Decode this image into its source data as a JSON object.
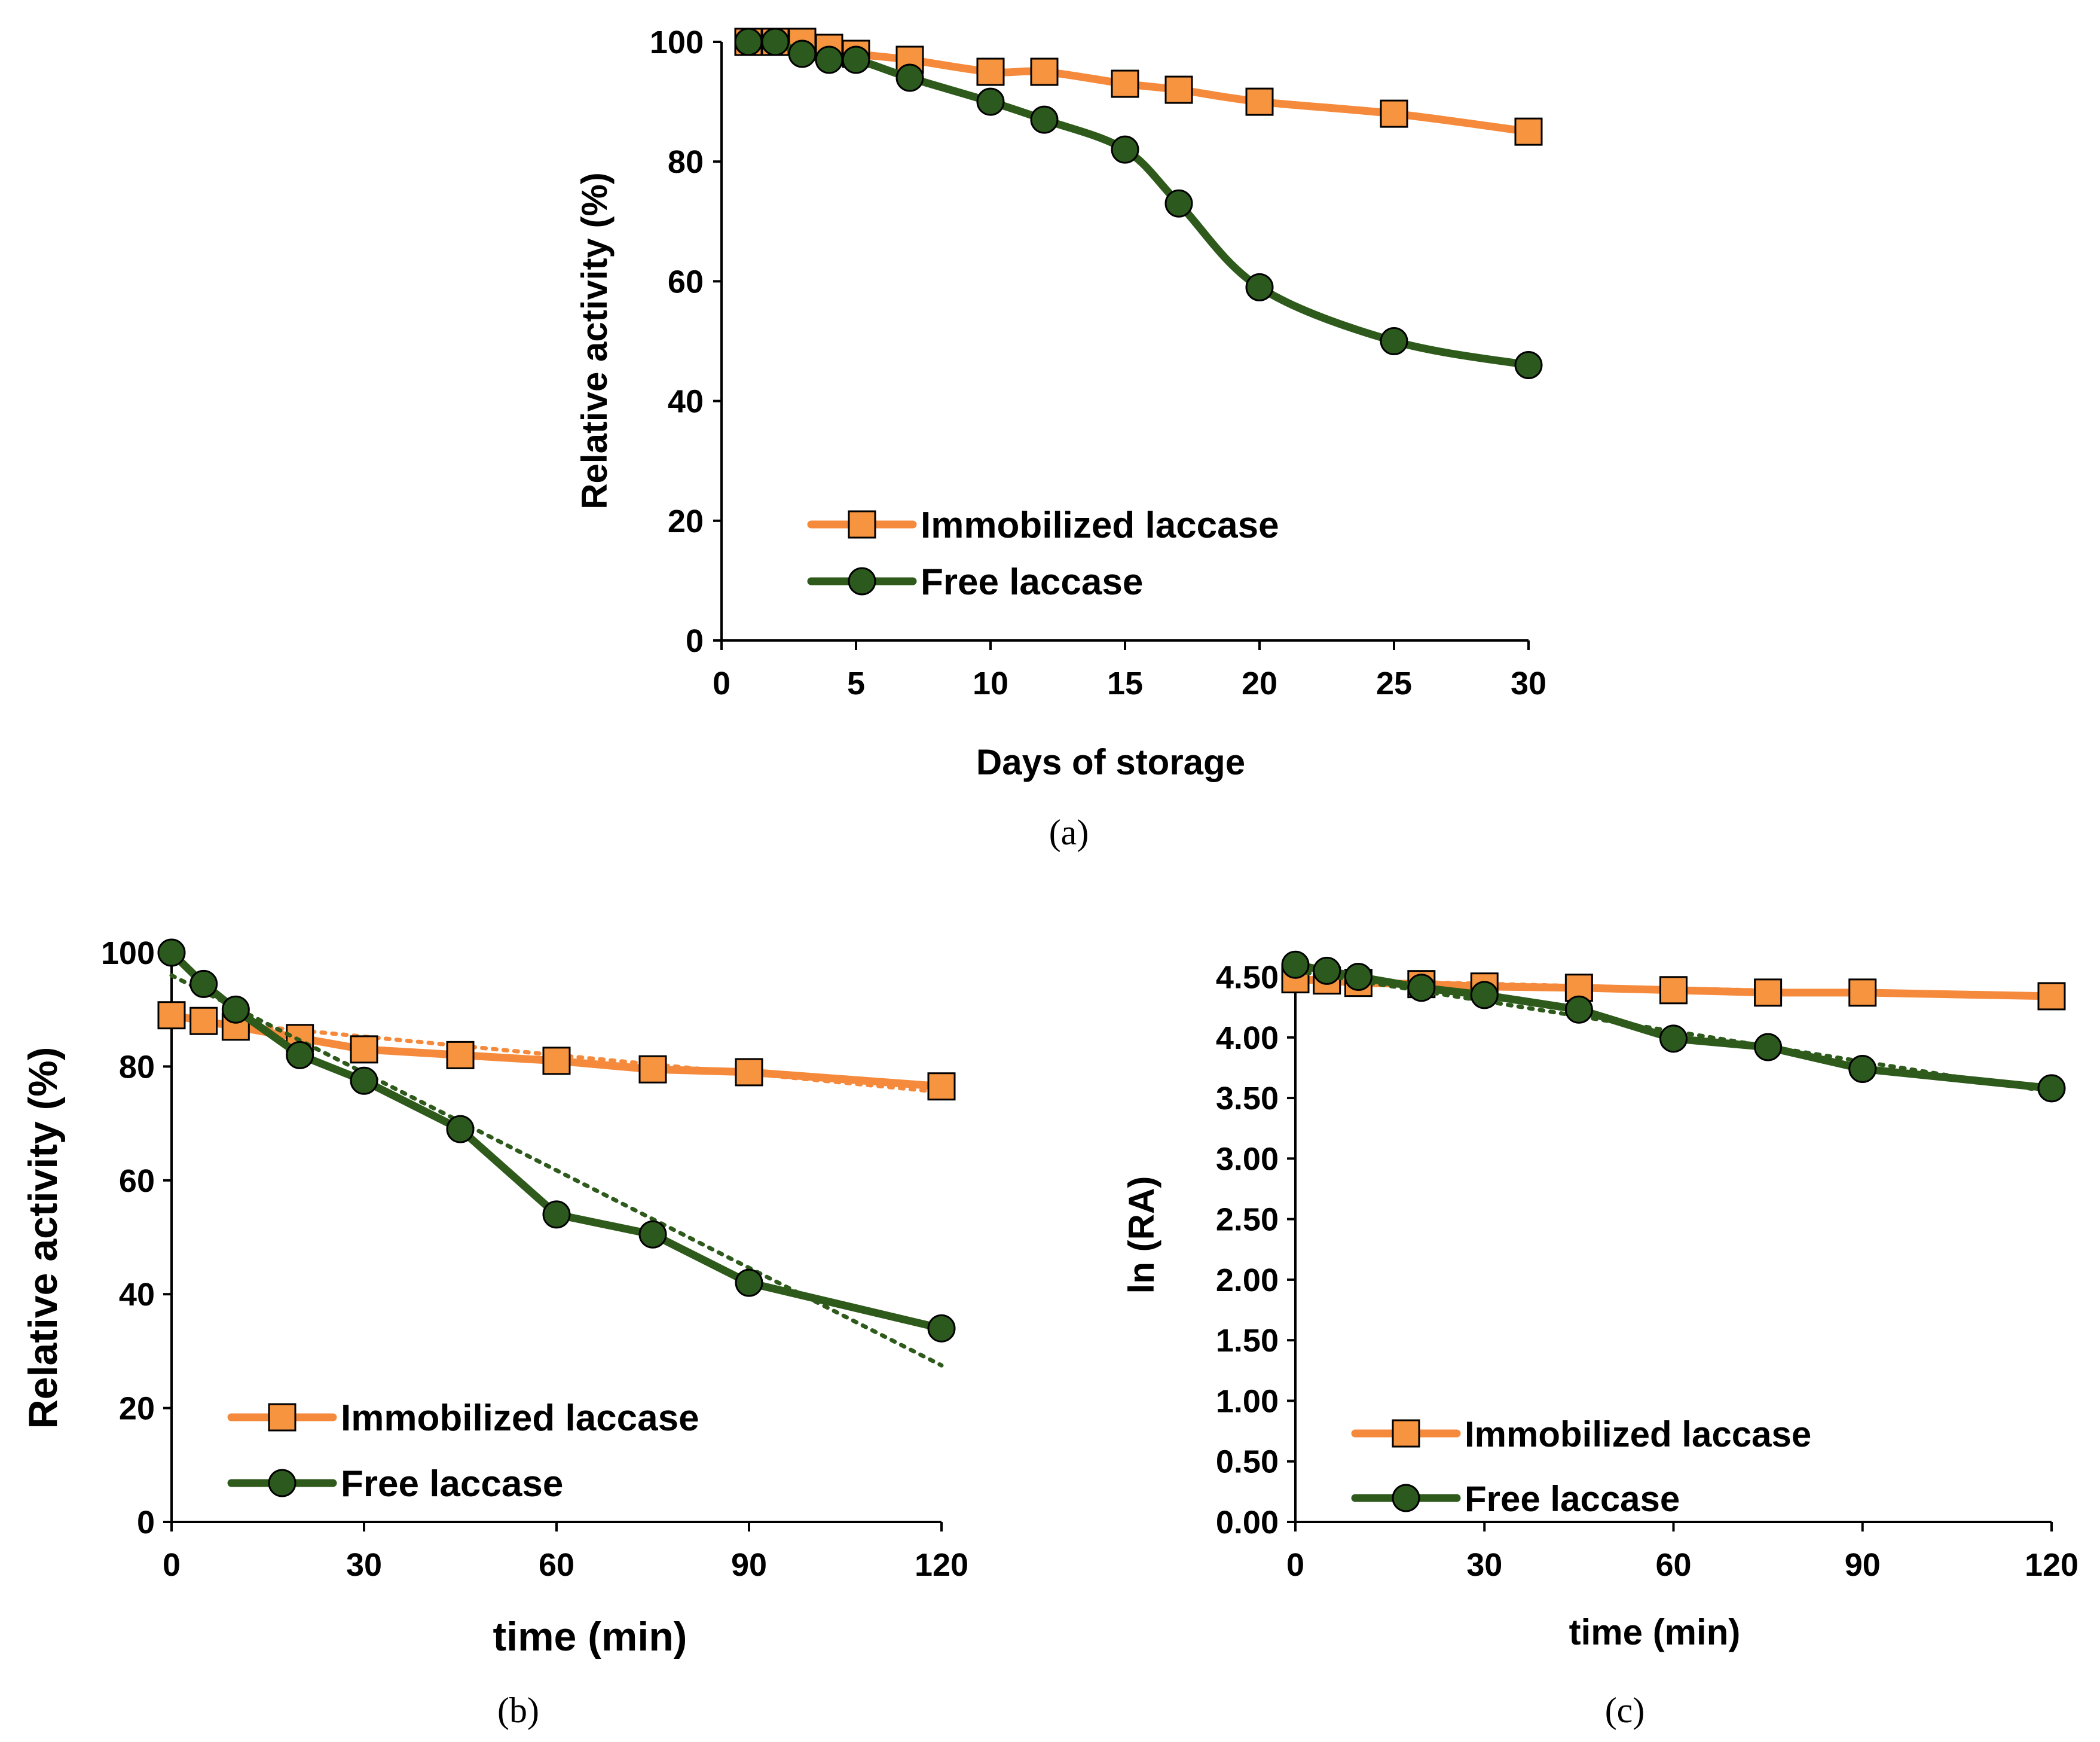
{
  "colors": {
    "immobilized": "#F58A3C",
    "immobilized_marker": "#F7943F",
    "free": "#2E5A1C",
    "free_marker": "#2C5A1E",
    "axis": "#000000"
  },
  "chart_data": [
    {
      "id": "a",
      "type": "line",
      "panel_label": "(a)",
      "xlabel": "Days of storage",
      "ylabel": "Relative activity (%)",
      "xlim": [
        0,
        30
      ],
      "ylim": [
        0,
        100
      ],
      "xticks": [
        0,
        5,
        10,
        15,
        20,
        25,
        30
      ],
      "yticks": [
        0,
        20,
        40,
        60,
        80,
        100
      ],
      "grid": false,
      "legend_position": "lower-left",
      "series": [
        {
          "name": "Immobilized laccase",
          "marker": "square",
          "x": [
            1,
            2,
            3,
            4,
            5,
            7,
            10,
            12,
            15,
            17,
            20,
            25,
            30
          ],
          "y": [
            100,
            100,
            100,
            99,
            98,
            97,
            95,
            95,
            93,
            92,
            90,
            88,
            85
          ]
        },
        {
          "name": "Free laccase",
          "marker": "circle",
          "x": [
            1,
            2,
            3,
            4,
            5,
            7,
            10,
            12,
            15,
            17,
            20,
            25,
            30
          ],
          "y": [
            100,
            100,
            98,
            97,
            97,
            94,
            90,
            87,
            82,
            73,
            59,
            50,
            46
          ]
        }
      ]
    },
    {
      "id": "b",
      "type": "line",
      "panel_label": "(b)",
      "xlabel": "time (min)",
      "ylabel": "Relative activity (%)",
      "xlim": [
        0,
        120
      ],
      "ylim": [
        0,
        100
      ],
      "xticks": [
        0,
        30,
        60,
        90,
        120
      ],
      "yticks": [
        0,
        20,
        40,
        60,
        80,
        100
      ],
      "grid": false,
      "legend_position": "lower-left",
      "trendlines": "linear, dotted",
      "series": [
        {
          "name": "Immobilized laccase",
          "marker": "square",
          "x": [
            0,
            5,
            10,
            20,
            30,
            45,
            60,
            75,
            90,
            120
          ],
          "y": [
            89,
            88,
            87,
            85,
            83,
            82,
            81,
            79.5,
            79,
            76.5
          ],
          "trend": [
            88.5,
            75.5
          ]
        },
        {
          "name": "Free laccase",
          "marker": "circle",
          "x": [
            0,
            5,
            10,
            20,
            30,
            45,
            60,
            75,
            90,
            120
          ],
          "y": [
            100,
            94.5,
            90,
            82,
            77.5,
            69,
            54,
            50.5,
            42,
            34
          ],
          "trend": [
            96,
            27.5
          ]
        }
      ]
    },
    {
      "id": "c",
      "type": "line",
      "panel_label": "(c)",
      "xlabel": "time (min)",
      "ylabel": "ln (RA)",
      "xlim": [
        0,
        120
      ],
      "ylim": [
        0,
        4.7
      ],
      "xticks": [
        0,
        30,
        60,
        90,
        120
      ],
      "yticks": [
        "0.00",
        "0.50",
        "1.00",
        "1.50",
        "2.00",
        "2.50",
        "3.00",
        "3.50",
        "4.00",
        "4.50"
      ],
      "grid": false,
      "legend_position": "lower-left",
      "trendlines": "linear, dotted",
      "series": [
        {
          "name": "Immobilized laccase",
          "marker": "square",
          "x": [
            0,
            5,
            10,
            20,
            30,
            45,
            60,
            75,
            90,
            120
          ],
          "y": [
            4.48,
            4.47,
            4.45,
            4.44,
            4.42,
            4.41,
            4.39,
            4.37,
            4.37,
            4.34
          ],
          "trend": [
            4.48,
            4.33
          ]
        },
        {
          "name": "Free laccase",
          "marker": "circle",
          "x": [
            0,
            5,
            10,
            20,
            30,
            45,
            60,
            75,
            90,
            120
          ],
          "y": [
            4.6,
            4.55,
            4.5,
            4.41,
            4.35,
            4.23,
            3.99,
            3.92,
            3.74,
            3.58
          ],
          "trend": [
            4.55,
            3.55
          ]
        }
      ]
    }
  ]
}
